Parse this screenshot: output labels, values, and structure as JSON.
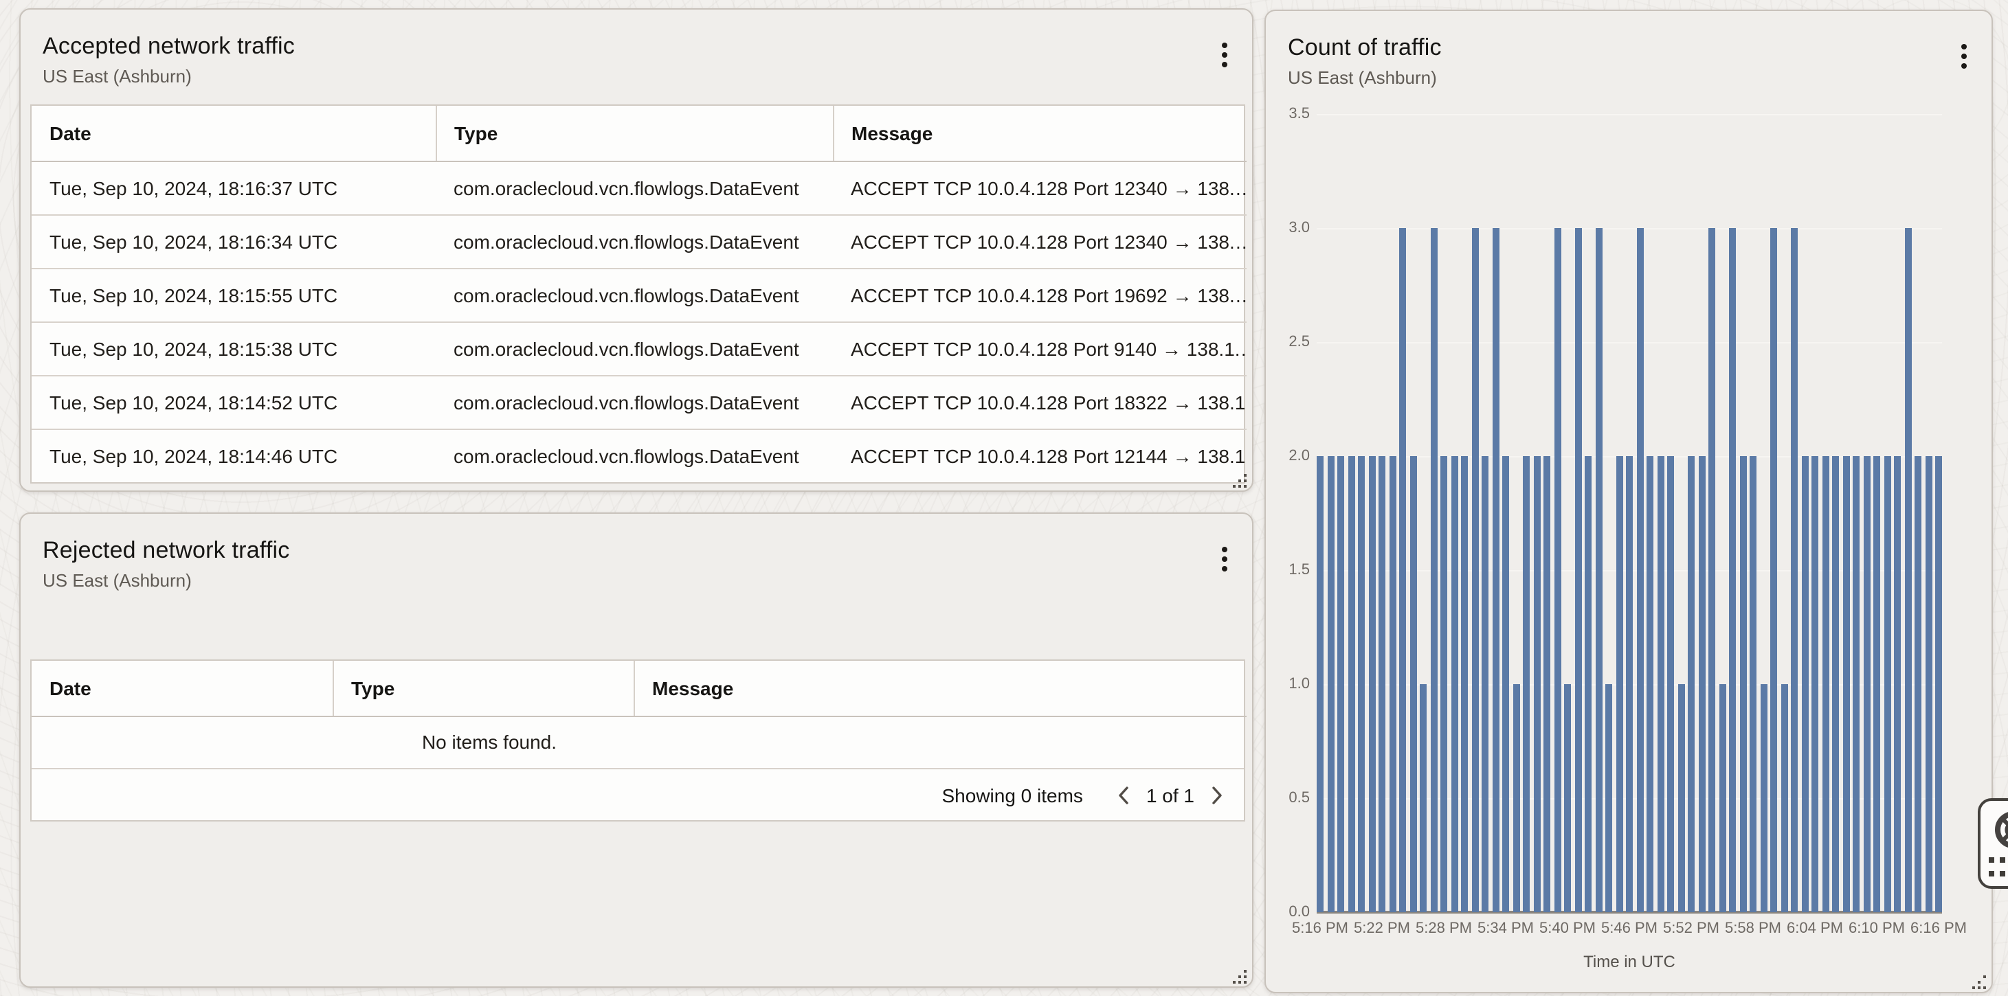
{
  "panels": {
    "accepted": {
      "title": "Accepted network traffic",
      "subtitle": "US East (Ashburn)",
      "columns": [
        "Date",
        "Type",
        "Message"
      ],
      "rows": [
        {
          "date": "Tue, Sep 10, 2024, 18:16:37 UTC",
          "type": "com.oraclecloud.vcn.flowlogs.DataEvent",
          "message": "ACCEPT TCP 10.0.4.128 Port 12340 → 138.…"
        },
        {
          "date": "Tue, Sep 10, 2024, 18:16:34 UTC",
          "type": "com.oraclecloud.vcn.flowlogs.DataEvent",
          "message": "ACCEPT TCP 10.0.4.128 Port 12340 → 138.…"
        },
        {
          "date": "Tue, Sep 10, 2024, 18:15:55 UTC",
          "type": "com.oraclecloud.vcn.flowlogs.DataEvent",
          "message": "ACCEPT TCP 10.0.4.128 Port 19692 → 138.…"
        },
        {
          "date": "Tue, Sep 10, 2024, 18:15:38 UTC",
          "type": "com.oraclecloud.vcn.flowlogs.DataEvent",
          "message": "ACCEPT TCP 10.0.4.128 Port 9140 → 138.1.…"
        },
        {
          "date": "Tue, Sep 10, 2024, 18:14:52 UTC",
          "type": "com.oraclecloud.vcn.flowlogs.DataEvent",
          "message": "ACCEPT TCP 10.0.4.128 Port 18322 → 138.1…"
        },
        {
          "date": "Tue, Sep 10, 2024, 18:14:46 UTC",
          "type": "com.oraclecloud.vcn.flowlogs.DataEvent",
          "message": "ACCEPT TCP 10.0.4.128 Port 12144 → 138.1…"
        }
      ]
    },
    "rejected": {
      "title": "Rejected network traffic",
      "subtitle": "US East (Ashburn)",
      "columns": [
        "Date",
        "Type",
        "Message"
      ],
      "empty_message": "No items found.",
      "pagination": {
        "summary": "Showing 0 items",
        "page_label": "1 of 1"
      }
    },
    "chart": {
      "title": "Count of traffic",
      "subtitle": "US East (Ashburn)",
      "chart_data": {
        "type": "bar",
        "title": "Count of traffic",
        "xlabel": "Time in UTC",
        "ylabel": "",
        "ylim": [
          0,
          3.5
        ],
        "y_ticks": [
          "0.0",
          "0.5",
          "1.0",
          "1.5",
          "2.0",
          "2.5",
          "3.0",
          "3.5"
        ],
        "bar_color": "#5b7aa6",
        "grid": true,
        "legend": false,
        "categories": [
          "5:16 PM",
          "5:17 PM",
          "5:18 PM",
          "5:19 PM",
          "5:20 PM",
          "5:21 PM",
          "5:22 PM",
          "5:23 PM",
          "5:24 PM",
          "5:25 PM",
          "5:26 PM",
          "5:27 PM",
          "5:28 PM",
          "5:29 PM",
          "5:30 PM",
          "5:31 PM",
          "5:32 PM",
          "5:33 PM",
          "5:34 PM",
          "5:35 PM",
          "5:36 PM",
          "5:37 PM",
          "5:38 PM",
          "5:39 PM",
          "5:40 PM",
          "5:41 PM",
          "5:42 PM",
          "5:43 PM",
          "5:44 PM",
          "5:45 PM",
          "5:46 PM",
          "5:47 PM",
          "5:48 PM",
          "5:49 PM",
          "5:50 PM",
          "5:51 PM",
          "5:52 PM",
          "5:53 PM",
          "5:54 PM",
          "5:55 PM",
          "5:56 PM",
          "5:57 PM",
          "5:58 PM",
          "5:59 PM",
          "6:00 PM",
          "6:01 PM",
          "6:02 PM",
          "6:03 PM",
          "6:04 PM",
          "6:05 PM",
          "6:06 PM",
          "6:07 PM",
          "6:08 PM",
          "6:09 PM",
          "6:10 PM",
          "6:11 PM",
          "6:12 PM",
          "6:13 PM",
          "6:14 PM",
          "6:15 PM",
          "6:16 PM"
        ],
        "values": [
          2,
          2,
          2,
          2,
          2,
          2,
          2,
          2,
          3,
          2,
          1,
          3,
          2,
          2,
          2,
          3,
          2,
          3,
          2,
          1,
          2,
          2,
          2,
          3,
          1,
          3,
          2,
          3,
          1,
          2,
          2,
          3,
          2,
          2,
          2,
          1,
          2,
          2,
          3,
          1,
          3,
          2,
          2,
          1,
          3,
          1,
          3,
          2,
          2,
          2,
          2,
          2,
          2,
          2,
          2,
          2,
          2,
          3,
          2,
          2,
          2
        ],
        "x_tick_labels": [
          "5:16 PM",
          "5:22 PM",
          "5:28 PM",
          "5:34 PM",
          "5:40 PM",
          "5:46 PM",
          "5:52 PM",
          "5:58 PM",
          "6:04 PM",
          "6:10 PM",
          "6:16 PM"
        ]
      }
    }
  },
  "icons": {
    "panel_menu": "kebab-vertical-dots",
    "resize_grip": "drag-dots",
    "pagination_prev": "chevron-left",
    "pagination_next": "chevron-right",
    "help": "life-ring",
    "launcher": "dot-grid"
  }
}
